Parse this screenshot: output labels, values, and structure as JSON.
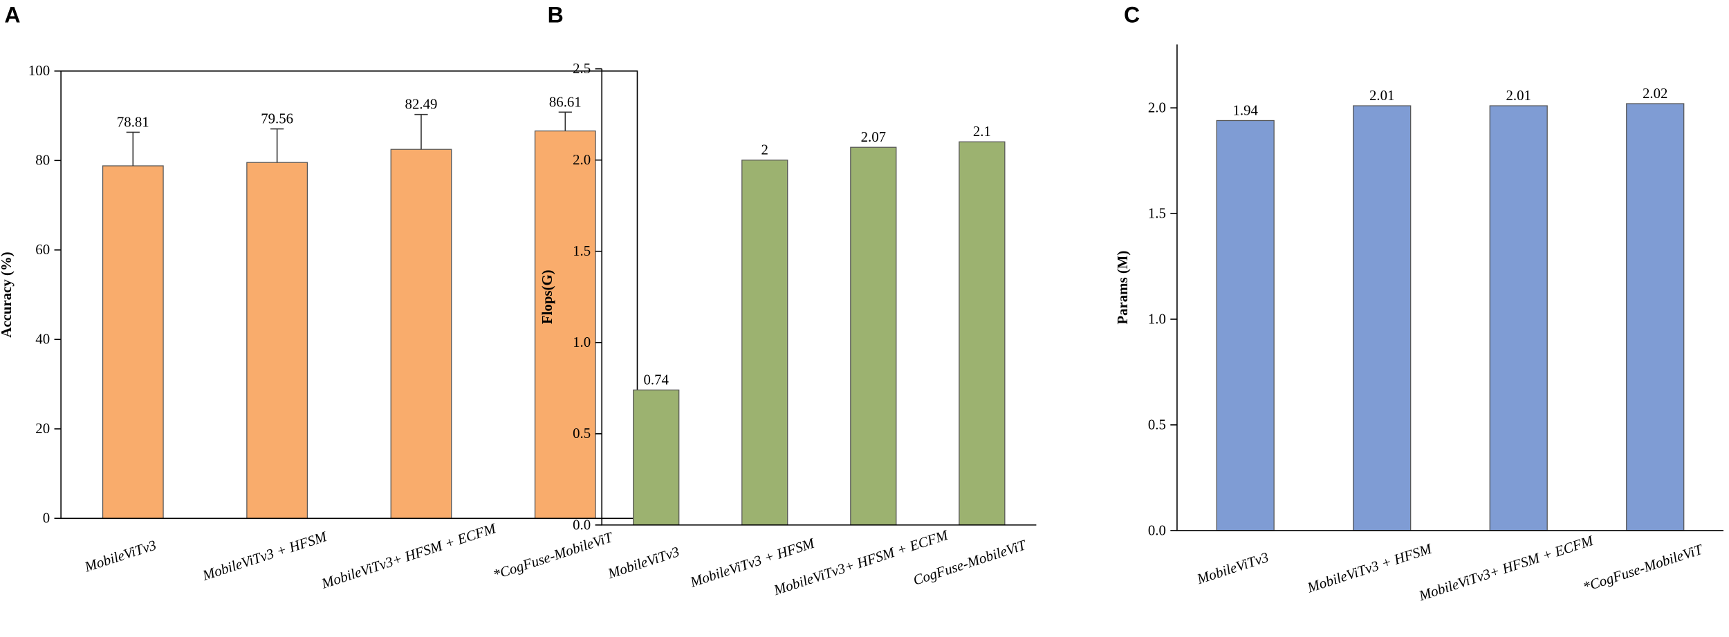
{
  "chart_data": [
    {
      "type": "bar",
      "panel": "A",
      "y_label": "Accuracy (%)",
      "categories": [
        "MobileViTv3",
        "MobileViTv3 + HFSM",
        "MobileViTv3+ HFSM + ECFM",
        "*CogFuse-MobileViT"
      ],
      "values": [
        78.81,
        79.56,
        82.49,
        86.61
      ],
      "errors": [
        7.5,
        7.5,
        7.8,
        4.2
      ],
      "color": "#f9ac6c",
      "ylim": [
        0,
        100
      ],
      "yticks": [
        0,
        20,
        40,
        60,
        80,
        100
      ],
      "box": true
    },
    {
      "type": "bar",
      "panel": "B",
      "y_label": "Flops(G)",
      "categories": [
        "MobileViTv3",
        "MobileViTv3 + HFSM",
        "MobileViTv3+ HFSM + ECFM",
        "CogFuse-MobileViT"
      ],
      "values": [
        0.74,
        2,
        2.07,
        2.1
      ],
      "color": "#9cb270",
      "ylim": [
        0,
        2.5
      ],
      "yticks": [
        {
          "value": 0,
          "label": "0.0"
        },
        0.5,
        {
          "value": 1,
          "label": "1.0"
        },
        1.5,
        {
          "value": 2,
          "label": "2.0"
        },
        2.5
      ],
      "box": false
    },
    {
      "type": "bar",
      "panel": "C",
      "y_label": "Params (M)",
      "categories": [
        "MobileViTv3",
        "MobileViTv3 + HFSM",
        "MobileViTv3+ HFSM + ECFM",
        "*CogFuse-MobileViT"
      ],
      "values": [
        1.94,
        2.01,
        2.01,
        2.02
      ],
      "color": "#7f9cd4",
      "ylim": [
        0,
        2.3
      ],
      "yticks": [
        {
          "value": 0,
          "label": "0.0"
        },
        0.5,
        {
          "value": 1,
          "label": "1.0"
        },
        1.5,
        {
          "value": 2,
          "label": "2.0"
        }
      ],
      "box": false
    }
  ]
}
